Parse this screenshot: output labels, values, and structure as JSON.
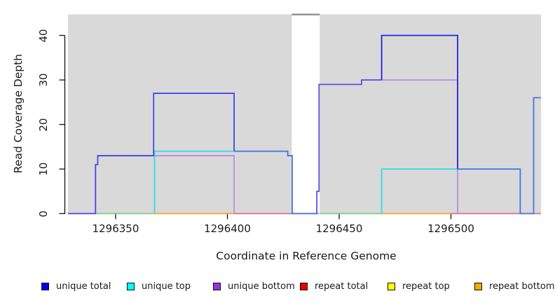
{
  "chart_data": {
    "type": "line",
    "subtype": "step-coverage-plot",
    "title": "",
    "xlabel": "Coordinate in Reference Genome",
    "ylabel": "Read Coverage Depth",
    "xlim": [
      1296329,
      1296542
    ],
    "ylim": [
      0,
      45
    ],
    "x_ticks": [
      1296350,
      1296400,
      1296450,
      1296500
    ],
    "y_ticks": [
      0,
      10,
      20,
      30,
      40
    ],
    "grid": false,
    "panel_color": "#d9d9d9",
    "background_panels": [
      {
        "x1": 1296328.7,
        "x2": 1296428.8
      },
      {
        "x1": 1296441.3,
        "x2": 1296540.3
      }
    ],
    "gap_line": {
      "x1": 1296428.8,
      "x2": 1296441.3,
      "y": 44.7,
      "color": "#8e8e8e"
    },
    "legend_position": "bottom",
    "legend": [
      {
        "label": "unique total",
        "color": "#0000ee"
      },
      {
        "label": "unique top",
        "color": "#00ffff"
      },
      {
        "label": "unique bottom",
        "color": "#9b30d9"
      },
      {
        "label": "repeat total",
        "color": "#ee0000"
      },
      {
        "label": "repeat top",
        "color": "#ffff00"
      },
      {
        "label": "repeat bottom",
        "color": "#ffa500"
      }
    ],
    "series": [
      {
        "name": "repeat-total-baseline-a",
        "color": "#dd6e8c",
        "points": [
          [
            1296403,
            0
          ],
          [
            1296441,
            0
          ]
        ]
      },
      {
        "name": "repeat-total-baseline-b",
        "color": "#dd6e8c",
        "points": [
          [
            1296500,
            0
          ],
          [
            1296540.3,
            0
          ]
        ]
      },
      {
        "name": "baseline-green-a",
        "color": "#7cce7c",
        "points": [
          [
            1296341,
            0
          ],
          [
            1296367,
            0
          ]
        ]
      },
      {
        "name": "baseline-green-b",
        "color": "#7cce7c",
        "points": [
          [
            1296441.3,
            0
          ],
          [
            1296469,
            0
          ]
        ]
      },
      {
        "name": "repeat-bottom-baseline-a",
        "color": "#ffa126",
        "points": [
          [
            1296367,
            0
          ],
          [
            1296403,
            0
          ]
        ]
      },
      {
        "name": "repeat-bottom-baseline-b",
        "color": "#ffa126",
        "points": [
          [
            1296469,
            0
          ],
          [
            1296500,
            0
          ]
        ]
      },
      {
        "name": "unique-bottom-left",
        "color": "#bb8be2",
        "points": [
          [
            1296342,
            13
          ],
          [
            1296403,
            13
          ],
          [
            1296403,
            0
          ]
        ]
      },
      {
        "name": "unique-bottom-right",
        "color": "#bb8be2",
        "points": [
          [
            1296469,
            30
          ],
          [
            1296503,
            30
          ],
          [
            1296503,
            0
          ]
        ]
      },
      {
        "name": "unique-top-left",
        "color": "#2ce0e8",
        "points": [
          [
            1296367.4,
            0
          ],
          [
            1296367.4,
            14
          ],
          [
            1296403,
            14
          ]
        ]
      },
      {
        "name": "unique-top-right",
        "color": "#2ce0e8",
        "points": [
          [
            1296469,
            0
          ],
          [
            1296469,
            10
          ],
          [
            1296531,
            10
          ],
          [
            1296531,
            0
          ]
        ]
      },
      {
        "name": "unique-total-seg1",
        "color": "#4646ec",
        "points": [
          [
            1296328.7,
            0
          ],
          [
            1296341,
            0
          ],
          [
            1296341,
            11
          ],
          [
            1296342,
            11
          ],
          [
            1296342,
            13
          ],
          [
            1296367,
            13
          ],
          [
            1296367,
            27
          ],
          [
            1296403,
            27
          ],
          [
            1296403,
            14
          ]
        ]
      },
      {
        "name": "unique-total-seg2",
        "color": "#4472e4",
        "points": [
          [
            1296403,
            14
          ],
          [
            1296427,
            14
          ],
          [
            1296427,
            13
          ],
          [
            1296429,
            13
          ],
          [
            1296429,
            0
          ],
          [
            1296440,
            0
          ]
        ]
      },
      {
        "name": "unique-total-seg3",
        "color": "#5454e2",
        "points": [
          [
            1296440,
            0
          ],
          [
            1296440,
            5
          ],
          [
            1296441,
            5
          ],
          [
            1296441,
            29
          ],
          [
            1296460,
            29
          ],
          [
            1296460,
            30
          ],
          [
            1296469,
            30
          ]
        ]
      },
      {
        "name": "unique-total-seg4",
        "color": "#2222e6",
        "points": [
          [
            1296469,
            30
          ],
          [
            1296469,
            40
          ],
          [
            1296503,
            40
          ],
          [
            1296503,
            10
          ]
        ]
      },
      {
        "name": "unique-total-seg5",
        "color": "#4478e8",
        "points": [
          [
            1296503,
            10
          ],
          [
            1296531,
            10
          ],
          [
            1296531,
            0
          ],
          [
            1296537,
            0
          ],
          [
            1296537,
            26
          ],
          [
            1296540.3,
            26
          ]
        ]
      }
    ]
  }
}
